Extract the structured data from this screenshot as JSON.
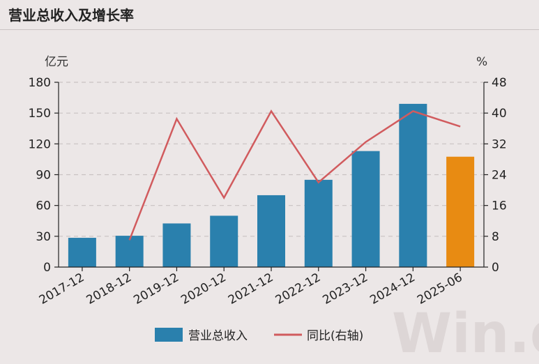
{
  "header": {
    "title": "营业总收入及增长率"
  },
  "watermark": "Win.d",
  "colors": {
    "bar": "#2a80ad",
    "bar_highlight": "#e88b12",
    "line": "#d15b5e",
    "grid": "#c8c2c2",
    "axis": "#222222"
  },
  "chart_data": {
    "type": "bar",
    "categories": [
      "2017-12",
      "2018-12",
      "2019-12",
      "2020-12",
      "2021-12",
      "2022-12",
      "2023-12",
      "2024-12",
      "2025-06"
    ],
    "series": [
      {
        "name": "营业总收入",
        "type": "bar",
        "axis": "left",
        "values": [
          28.5,
          30.5,
          42.5,
          50.0,
          70.0,
          85.0,
          113.0,
          159.0,
          107.5
        ],
        "highlight_index": 8
      },
      {
        "name": "同比(右轴)",
        "type": "line",
        "axis": "right",
        "values": [
          null,
          7.0,
          38.5,
          18.0,
          40.5,
          22.0,
          32.5,
          40.5,
          36.5
        ]
      }
    ],
    "yleft": {
      "unit": "亿元",
      "ylim": [
        0,
        180
      ],
      "ticks": [
        0,
        30,
        60,
        90,
        120,
        150,
        180
      ]
    },
    "yright": {
      "unit": "%",
      "ylim": [
        0,
        48
      ],
      "ticks": [
        0,
        8,
        16,
        24,
        32,
        40,
        48
      ]
    },
    "grid": true,
    "legend_position": "bottom"
  }
}
